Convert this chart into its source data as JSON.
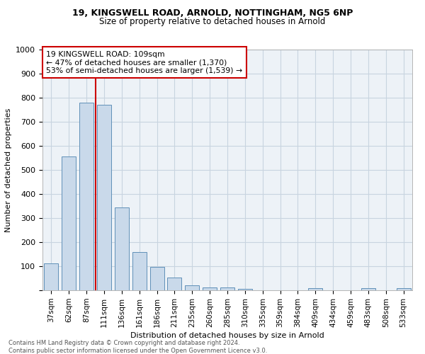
{
  "title1": "19, KINGSWELL ROAD, ARNOLD, NOTTINGHAM, NG5 6NP",
  "title2": "Size of property relative to detached houses in Arnold",
  "xlabel": "Distribution of detached houses by size in Arnold",
  "ylabel": "Number of detached properties",
  "bar_color": "#c9d9ea",
  "bar_edgecolor": "#6090b8",
  "grid_color": "#c8d4e0",
  "background_color": "#edf2f7",
  "categories": [
    "37sqm",
    "62sqm",
    "87sqm",
    "111sqm",
    "136sqm",
    "161sqm",
    "186sqm",
    "211sqm",
    "235sqm",
    "260sqm",
    "285sqm",
    "310sqm",
    "335sqm",
    "359sqm",
    "384sqm",
    "409sqm",
    "434sqm",
    "459sqm",
    "483sqm",
    "508sqm",
    "533sqm"
  ],
  "values": [
    113,
    555,
    778,
    770,
    345,
    160,
    97,
    53,
    20,
    13,
    13,
    7,
    0,
    0,
    0,
    8,
    0,
    0,
    8,
    0,
    8
  ],
  "vline_color": "#cc0000",
  "vline_index": 2.5,
  "annotation_title": "19 KINGSWELL ROAD: 109sqm",
  "annotation_line1": "← 47% of detached houses are smaller (1,370)",
  "annotation_line2": "53% of semi-detached houses are larger (1,539) →",
  "annotation_box_facecolor": "#ffffff",
  "annotation_box_edgecolor": "#cc0000",
  "footer1": "Contains HM Land Registry data © Crown copyright and database right 2024.",
  "footer2": "Contains public sector information licensed under the Open Government Licence v3.0.",
  "ylim": [
    0,
    1000
  ],
  "yticks": [
    0,
    100,
    200,
    300,
    400,
    500,
    600,
    700,
    800,
    900,
    1000
  ]
}
